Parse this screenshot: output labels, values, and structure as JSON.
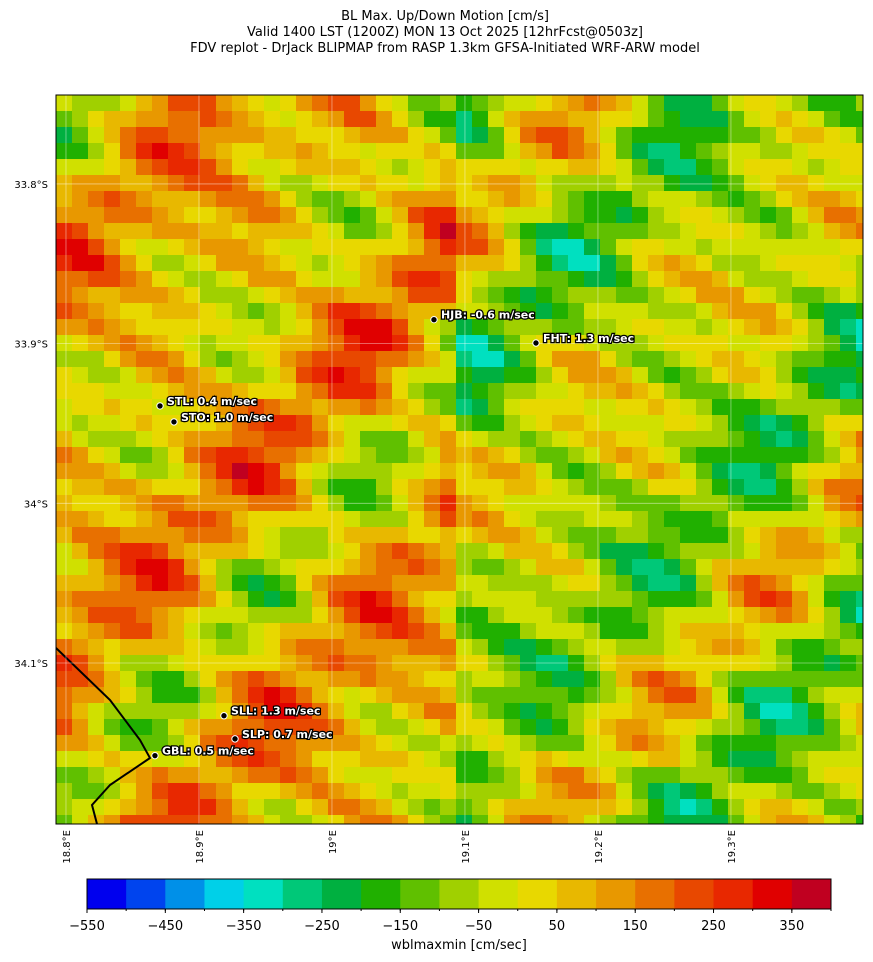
{
  "map": {
    "title": [
      "BL Max. Up/Down Motion [cm/s]",
      "Valid 1400 LST (1200Z) MON 13 Oct 2025 [12hrFcst@0503z]",
      "FDV replot - DrJack BLIPMAP from RASP 1.3km GFSA-Initiated WRF-ARW model"
    ],
    "xlim": [
      18.7925,
      19.3993
    ],
    "ylim": [
      33.7443,
      34.2008
    ],
    "xticks": [
      {
        "value": 18.8,
        "label": "18.8°E"
      },
      {
        "value": 18.9,
        "label": "18.9°E"
      },
      {
        "value": 19.0,
        "label": "19°E"
      },
      {
        "value": 19.1,
        "label": "19.1°E"
      },
      {
        "value": 19.2,
        "label": "19.2°E"
      },
      {
        "value": 19.3,
        "label": "19.3°E"
      }
    ],
    "yticks": [
      {
        "value": 33.8,
        "label": "33.8°S"
      },
      {
        "value": 33.9,
        "label": "33.9°S"
      },
      {
        "value": 34.0,
        "label": "34°S"
      },
      {
        "value": 34.1,
        "label": "34.1°S"
      }
    ],
    "stations": [
      {
        "label": "HJB: -0.6 m/sec",
        "lon": 19.0767,
        "lat": 33.885
      },
      {
        "label": "FHT: 1.3 m/sec",
        "lon": 19.1534,
        "lat": 33.8996
      },
      {
        "label": "STL: 0.4 m/sec",
        "lon": 18.8707,
        "lat": 33.939
      },
      {
        "label": "STO: 1.0 m/sec",
        "lon": 18.8812,
        "lat": 33.949
      },
      {
        "label": "SLL: 1.3 m/sec",
        "lon": 18.9188,
        "lat": 34.133
      },
      {
        "label": "SLP: 0.7 m/sec",
        "lon": 18.9271,
        "lat": 34.1475
      },
      {
        "label": "GBL: 0.5 m/sec",
        "lon": 18.8669,
        "lat": 34.158
      }
    ]
  },
  "colorbar": {
    "label": "wblmaxmin [cm/sec]",
    "lim": [
      -550,
      400
    ],
    "bounds": [
      -550,
      -500,
      -450,
      -400,
      -350,
      -300,
      -250,
      -200,
      -150,
      -100,
      -50,
      0,
      50,
      100,
      150,
      200,
      250,
      300,
      350,
      400
    ],
    "colors": [
      "#0000ee",
      "#0044ee",
      "#0090e8",
      "#00d0e8",
      "#00e0c0",
      "#00c878",
      "#00b040",
      "#20b000",
      "#60c000",
      "#a0d000",
      "#d0e000",
      "#e8d800",
      "#e8b800",
      "#e89800",
      "#e87000",
      "#e84800",
      "#e82800",
      "#e00000",
      "#c00020"
    ],
    "ticks": [
      {
        "value": -550,
        "label": "−550"
      },
      {
        "value": -450,
        "label": "−450"
      },
      {
        "value": -350,
        "label": "−350"
      },
      {
        "value": -250,
        "label": "−250"
      },
      {
        "value": -150,
        "label": "−150"
      },
      {
        "value": -50,
        "label": "−50"
      },
      50,
      150,
      250,
      350
    ]
  }
}
